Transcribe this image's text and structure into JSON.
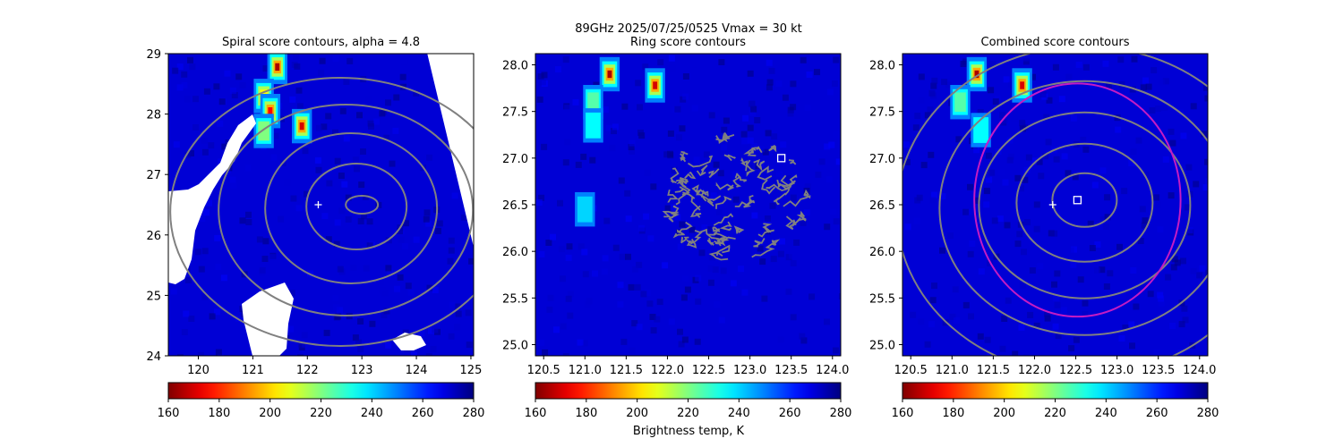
{
  "figure": {
    "suptitle_line1": "89GHz  2025/07/25/0525    Vmax = 30 kt",
    "colorbar_label": "Brightness temp, K"
  },
  "colors": {
    "contour": "#808080",
    "ring_circle": "#c41bc4",
    "marker": "#ffffff"
  },
  "chart_data": [
    {
      "type": "heatmap",
      "title": "Spiral score contours, alpha =  4.8",
      "xlim": [
        119.45,
        125.05
      ],
      "ylim": [
        24.0,
        29.0
      ],
      "xticks": [
        120,
        121,
        122,
        123,
        124,
        125
      ],
      "yticks": [
        24,
        25,
        26,
        27,
        28,
        29
      ],
      "colorbar": {
        "min": 160,
        "max": 280,
        "ticks": [
          160,
          180,
          200,
          220,
          240,
          260,
          280
        ],
        "colormap": "jet_r"
      },
      "background_temp": 270,
      "hotspots": [
        {
          "lon": 121.45,
          "lat": 28.78,
          "temp": 165
        },
        {
          "lon": 121.2,
          "lat": 28.3,
          "temp": 205
        },
        {
          "lon": 121.32,
          "lat": 28.05,
          "temp": 175
        },
        {
          "lon": 121.2,
          "lat": 27.72,
          "temp": 220
        },
        {
          "lon": 121.9,
          "lat": 27.8,
          "temp": 170
        }
      ],
      "center_marker": {
        "symbol": "+",
        "lon": 122.2,
        "lat": 26.5
      },
      "contour_centers": [
        {
          "lon": 123.0,
          "lat": 26.5
        }
      ]
    },
    {
      "type": "heatmap",
      "title": "Ring score contours",
      "xlim": [
        120.4,
        124.1
      ],
      "ylim": [
        24.88,
        28.12
      ],
      "xticks": [
        120.5,
        121.0,
        121.5,
        122.0,
        122.5,
        123.0,
        123.5,
        124.0
      ],
      "yticks": [
        25.0,
        25.5,
        26.0,
        26.5,
        27.0,
        27.5,
        28.0
      ],
      "colorbar": {
        "min": 160,
        "max": 280,
        "ticks": [
          160,
          180,
          200,
          220,
          240,
          260,
          280
        ],
        "colormap": "jet_r"
      },
      "background_temp": 270,
      "hotspots": [
        {
          "lon": 121.3,
          "lat": 27.9,
          "temp": 165
        },
        {
          "lon": 121.85,
          "lat": 27.78,
          "temp": 170
        },
        {
          "lon": 121.1,
          "lat": 27.6,
          "temp": 225
        },
        {
          "lon": 121.1,
          "lat": 27.35,
          "temp": 235
        },
        {
          "lon": 121.0,
          "lat": 26.45,
          "temp": 240
        }
      ],
      "square_marker": {
        "lon": 123.38,
        "lat": 27.0
      },
      "noisy_region": {
        "lon_min": 121.9,
        "lon_max": 123.75,
        "lat_min": 25.88,
        "lat_max": 27.28
      }
    },
    {
      "type": "heatmap",
      "title": "Combined score contours",
      "xlim": [
        120.4,
        124.1
      ],
      "ylim": [
        24.88,
        28.12
      ],
      "xticks": [
        120.5,
        121.0,
        121.5,
        122.0,
        122.5,
        123.0,
        123.5,
        124.0
      ],
      "yticks": [
        25.0,
        25.5,
        26.0,
        26.5,
        27.0,
        27.5,
        28.0
      ],
      "colorbar": {
        "min": 160,
        "max": 280,
        "ticks": [
          160,
          180,
          200,
          220,
          240,
          260,
          280
        ],
        "colormap": "jet_r"
      },
      "background_temp": 270,
      "hotspots": [
        {
          "lon": 121.3,
          "lat": 27.9,
          "temp": 165
        },
        {
          "lon": 121.85,
          "lat": 27.78,
          "temp": 170
        },
        {
          "lon": 121.1,
          "lat": 27.6,
          "temp": 225
        },
        {
          "lon": 121.35,
          "lat": 27.3,
          "temp": 235
        }
      ],
      "center_marker": {
        "symbol": "+",
        "lon": 122.22,
        "lat": 26.5
      },
      "square_marker": {
        "lon": 122.52,
        "lat": 26.55
      },
      "ring_circle": {
        "lon": 122.52,
        "lat": 26.55,
        "radius_deg": 1.25
      }
    }
  ]
}
